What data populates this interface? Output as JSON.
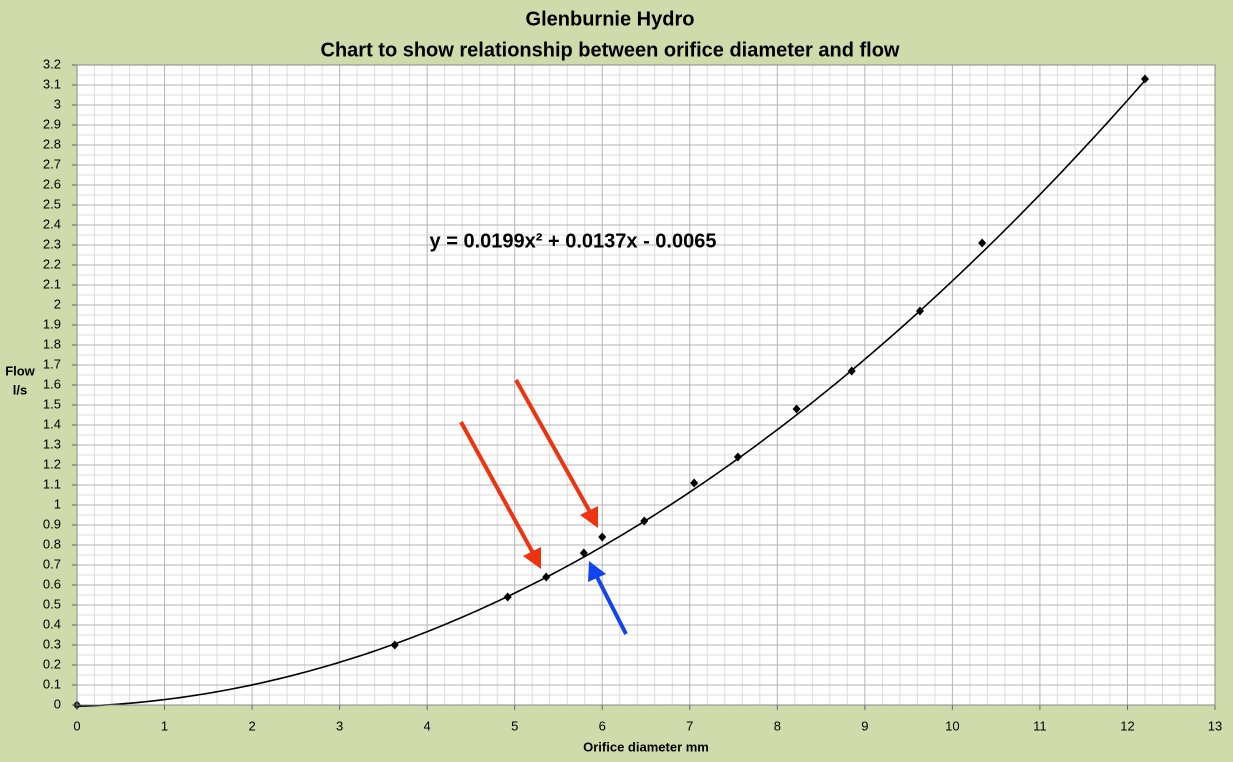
{
  "chart_data": {
    "type": "scatter",
    "title": "Glenburnie Hydro",
    "subtitle": "Chart to show relationship between orifice diameter and flow",
    "xlabel": "Orifice diameter mm",
    "ylabel": [
      "Flow",
      "l/s"
    ],
    "x": [
      0,
      3.63,
      4.92,
      5.36,
      5.79,
      6.0,
      6.48,
      7.05,
      7.55,
      8.22,
      8.85,
      9.63,
      10.34,
      12.2
    ],
    "values": [
      0,
      0.3,
      0.54,
      0.64,
      0.76,
      0.84,
      0.92,
      1.11,
      1.24,
      1.48,
      1.67,
      1.97,
      2.31,
      3.13
    ],
    "color": "#000000",
    "trendline": {
      "type": "polynomial",
      "coefficients": [
        0.0199,
        0.0137,
        -0.0065
      ],
      "label": "y = 0.0199x² + 0.0137x - 0.0065",
      "color": "#000000"
    },
    "xlim": [
      0,
      13
    ],
    "xticks": [
      0,
      1,
      2,
      3,
      4,
      5,
      6,
      7,
      8,
      9,
      10,
      11,
      12,
      13
    ],
    "ylim": [
      0,
      3.2
    ],
    "yticks": [
      0,
      0.1,
      0.2,
      0.3,
      0.4,
      0.5,
      0.6,
      0.7,
      0.8,
      0.9,
      1,
      1.1,
      1.2,
      1.3,
      1.4,
      1.5,
      1.6,
      1.7,
      1.8,
      1.9,
      2,
      2.1,
      2.2,
      2.3,
      2.4,
      2.5,
      2.6,
      2.7,
      2.8,
      2.9,
      3,
      3.1,
      3.2
    ],
    "grid": true,
    "minor_grid": true
  }
}
